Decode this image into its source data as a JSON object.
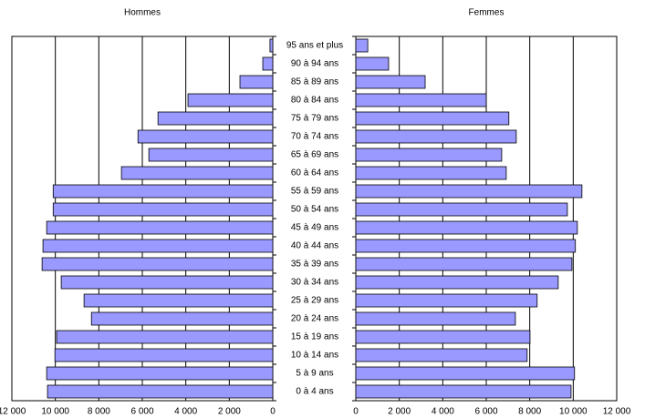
{
  "chart_data": {
    "type": "pyramid",
    "categories": [
      "0 à 4 ans",
      "5 à 9 ans",
      "10 à 14 ans",
      "15 à 19 ans",
      "20 à 24 ans",
      "25 à 29 ans",
      "30 à 34 ans",
      "35 à 39 ans",
      "40 à 44 ans",
      "45 à 49 ans",
      "50 à 54 ans",
      "55 à 59 ans",
      "60 à 64 ans",
      "65 à 69 ans",
      "70 à 74 ans",
      "75 à 79 ans",
      "80 à 84 ans",
      "85 à 89 ans",
      "90 à 94 ans",
      "95 ans et plus"
    ],
    "series": [
      {
        "name": "Hommes",
        "color": "#9999ff",
        "values": [
          10360,
          10400,
          10020,
          9940,
          8340,
          8680,
          9730,
          10610,
          10570,
          10400,
          10100,
          10100,
          6960,
          5700,
          6200,
          5280,
          3900,
          1510,
          460,
          130
        ]
      },
      {
        "name": "Femmes",
        "color": "#9999ff",
        "values": [
          9900,
          10060,
          7880,
          8010,
          7340,
          8340,
          9310,
          9940,
          10100,
          10190,
          9730,
          10400,
          6920,
          6710,
          7380,
          7040,
          6000,
          3190,
          1510,
          550
        ]
      }
    ],
    "xlim": [
      0,
      12000
    ],
    "xticks": [
      0,
      {
        "value": 2000,
        "label": "2 000"
      },
      {
        "value": 4000,
        "label": "4 000"
      },
      {
        "value": 6000,
        "label": "6 000"
      },
      {
        "value": 8000,
        "label": "8 000"
      },
      {
        "value": 10000,
        "label": "10 000"
      },
      {
        "value": 12000,
        "label": "12 000"
      }
    ],
    "grid": true
  }
}
